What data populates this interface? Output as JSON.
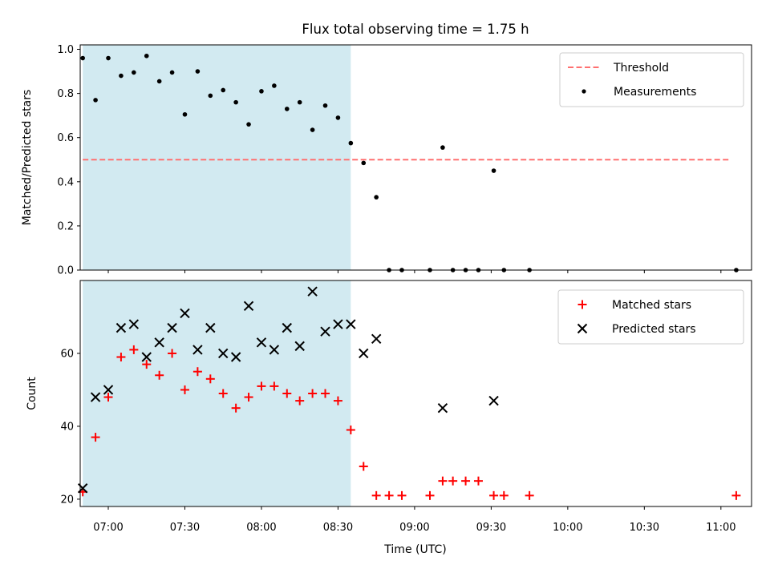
{
  "chart_data": {
    "title": "Flux total observing time = 1.75 h",
    "xlabel": "Time (UTC)",
    "x_ticks": [
      "07:00",
      "07:30",
      "08:00",
      "08:30",
      "09:00",
      "09:30",
      "10:00",
      "10:30",
      "11:00"
    ],
    "xlim": [
      "06:49",
      "11:12"
    ],
    "shaded_region": {
      "start": "06:50",
      "end": "08:35",
      "color": "#add8e6"
    },
    "panels": [
      {
        "type": "scatter",
        "ylabel": "Matched/Predicted stars",
        "ylim": [
          0,
          1.02
        ],
        "yticks": [
          "0.0",
          "0.2",
          "0.4",
          "0.6",
          "0.8",
          "1.0"
        ],
        "legend_position": "top-right",
        "threshold": {
          "name": "Threshold",
          "value": 0.5,
          "x_range": [
            "06:50",
            "11:03"
          ],
          "color": "#ff7070",
          "style": "dashed"
        },
        "series": [
          {
            "name": "Measurements",
            "color": "#000000",
            "marker": "dot",
            "points": [
              [
                "06:50",
                0.96
              ],
              [
                "06:55",
                0.77
              ],
              [
                "07:00",
                0.96
              ],
              [
                "07:05",
                0.88
              ],
              [
                "07:10",
                0.895
              ],
              [
                "07:15",
                0.97
              ],
              [
                "07:20",
                0.855
              ],
              [
                "07:25",
                0.895
              ],
              [
                "07:30",
                0.705
              ],
              [
                "07:35",
                0.9
              ],
              [
                "07:40",
                0.79
              ],
              [
                "07:45",
                0.815
              ],
              [
                "07:50",
                0.76
              ],
              [
                "07:55",
                0.66
              ],
              [
                "08:00",
                0.81
              ],
              [
                "08:05",
                0.835
              ],
              [
                "08:10",
                0.73
              ],
              [
                "08:15",
                0.76
              ],
              [
                "08:20",
                0.635
              ],
              [
                "08:25",
                0.745
              ],
              [
                "08:30",
                0.69
              ],
              [
                "08:35",
                0.575
              ],
              [
                "08:40",
                0.485
              ],
              [
                "08:45",
                0.33
              ],
              [
                "08:50",
                0.0
              ],
              [
                "08:55",
                0.0
              ],
              [
                "09:06",
                0.0
              ],
              [
                "09:11",
                0.555
              ],
              [
                "09:15",
                0.0
              ],
              [
                "09:20",
                0.0
              ],
              [
                "09:25",
                0.0
              ],
              [
                "09:31",
                0.45
              ],
              [
                "09:35",
                0.0
              ],
              [
                "09:45",
                0.0
              ],
              [
                "11:06",
                0.0
              ]
            ]
          }
        ]
      },
      {
        "type": "scatter",
        "ylabel": "Count",
        "ylim": [
          18,
          80
        ],
        "yticks": [
          "20",
          "40",
          "60"
        ],
        "legend_position": "top-right",
        "series": [
          {
            "name": "Matched stars",
            "color": "#ff0000",
            "marker": "plus",
            "points": [
              [
                "06:50",
                22
              ],
              [
                "06:55",
                37
              ],
              [
                "07:00",
                48
              ],
              [
                "07:05",
                59
              ],
              [
                "07:10",
                61
              ],
              [
                "07:15",
                57
              ],
              [
                "07:20",
                54
              ],
              [
                "07:25",
                60
              ],
              [
                "07:30",
                50
              ],
              [
                "07:35",
                55
              ],
              [
                "07:40",
                53
              ],
              [
                "07:45",
                49
              ],
              [
                "07:50",
                45
              ],
              [
                "07:55",
                48
              ],
              [
                "08:00",
                51
              ],
              [
                "08:05",
                51
              ],
              [
                "08:10",
                49
              ],
              [
                "08:15",
                47
              ],
              [
                "08:20",
                49
              ],
              [
                "08:25",
                49
              ],
              [
                "08:30",
                47
              ],
              [
                "08:35",
                39
              ],
              [
                "08:40",
                29
              ],
              [
                "08:45",
                21
              ],
              [
                "08:50",
                21
              ],
              [
                "08:55",
                21
              ],
              [
                "09:06",
                21
              ],
              [
                "09:11",
                25
              ],
              [
                "09:15",
                25
              ],
              [
                "09:20",
                25
              ],
              [
                "09:25",
                25
              ],
              [
                "09:31",
                21
              ],
              [
                "09:35",
                21
              ],
              [
                "09:45",
                21
              ],
              [
                "11:06",
                21
              ]
            ]
          },
          {
            "name": "Predicted stars",
            "color": "#000000",
            "marker": "x",
            "points": [
              [
                "06:50",
                23
              ],
              [
                "06:55",
                48
              ],
              [
                "07:00",
                50
              ],
              [
                "07:05",
                67
              ],
              [
                "07:10",
                68
              ],
              [
                "07:15",
                59
              ],
              [
                "07:20",
                63
              ],
              [
                "07:25",
                67
              ],
              [
                "07:30",
                71
              ],
              [
                "07:35",
                61
              ],
              [
                "07:40",
                67
              ],
              [
                "07:45",
                60
              ],
              [
                "07:50",
                59
              ],
              [
                "07:55",
                73
              ],
              [
                "08:00",
                63
              ],
              [
                "08:05",
                61
              ],
              [
                "08:10",
                67
              ],
              [
                "08:15",
                62
              ],
              [
                "08:20",
                77
              ],
              [
                "08:25",
                66
              ],
              [
                "08:30",
                68
              ],
              [
                "08:35",
                68
              ],
              [
                "08:40",
                60
              ],
              [
                "08:45",
                64
              ],
              [
                "09:11",
                45
              ],
              [
                "09:31",
                47
              ]
            ]
          }
        ]
      }
    ]
  }
}
